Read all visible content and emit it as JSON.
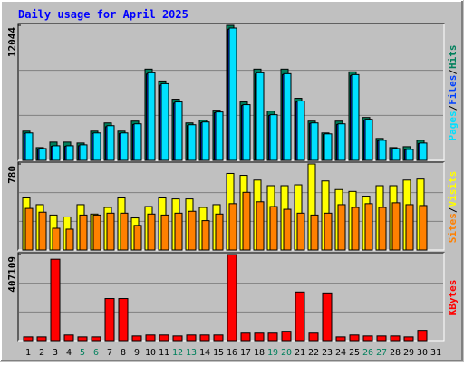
{
  "chart_data": [
    {
      "type": "bar",
      "title": "Daily usage for April 2025",
      "separator": "/",
      "ylim": [
        0,
        12044
      ],
      "yticks": [
        12044
      ],
      "series": [
        {
          "name": "Pages",
          "color": "#00e0ff",
          "values": [
            2442,
            1058,
            1302,
            1302,
            1384,
            2442,
            3093,
            2442,
            3256,
            7814,
            6838,
            5210,
            3174,
            3419,
            4314,
            11802,
            4965,
            7814,
            4070,
            7732,
            5291,
            3337,
            2360,
            3256,
            7651,
            3663,
            1791,
            1058,
            977,
            1546,
            null
          ]
        },
        {
          "name": "Files",
          "color": "#0040ff",
          "values": [
            2400,
            1000,
            1250,
            1250,
            1300,
            2400,
            3000,
            2400,
            3200,
            7700,
            6700,
            5100,
            3100,
            3350,
            4250,
            11700,
            4900,
            7700,
            4000,
            7650,
            5200,
            3300,
            2300,
            3200,
            7550,
            3600,
            1750,
            1000,
            950,
            1500,
            null
          ]
        },
        {
          "name": "Hits",
          "color": "#00805c",
          "values": [
            2604,
            1139,
            1628,
            1628,
            1546,
            2604,
            3336,
            2604,
            3499,
            8138,
            7080,
            5452,
            3336,
            3581,
            4476,
            12044,
            5208,
            8138,
            4394,
            8138,
            5534,
            3499,
            2441,
            3499,
            7894,
            3825,
            1953,
            1139,
            1221,
            1790,
            null
          ]
        }
      ]
    },
    {
      "type": "bar",
      "ylim": [
        0,
        780
      ],
      "yticks": [
        780
      ],
      "series": [
        {
          "name": "Sites",
          "color": "#ff8000",
          "values": [
            377,
            343,
            197,
            189,
            317,
            317,
            334,
            334,
            223,
            326,
            317,
            334,
            351,
            266,
            326,
            420,
            523,
            437,
            394,
            369,
            334,
            317,
            334,
            411,
            386,
            420,
            386,
            428,
            411,
            403,
            null
          ]
        },
        {
          "name": "Visits",
          "color": "#ffff00",
          "values": [
            472,
            411,
            317,
            300,
            411,
            326,
            386,
            472,
            291,
            394,
            472,
            463,
            463,
            386,
            411,
            694,
            677,
            634,
            583,
            583,
            591,
            780,
            626,
            548,
            531,
            488,
            583,
            583,
            634,
            643,
            null
          ]
        }
      ]
    },
    {
      "type": "bar",
      "ylim": [
        0,
        407109
      ],
      "yticks": [
        407109
      ],
      "categories": [
        "1",
        "2",
        "3",
        "4",
        "5",
        "6",
        "7",
        "8",
        "9",
        "10",
        "11",
        "12",
        "13",
        "14",
        "15",
        "16",
        "17",
        "18",
        "19",
        "20",
        "21",
        "22",
        "23",
        "24",
        "25",
        "26",
        "27",
        "28",
        "29",
        "30",
        "31"
      ],
      "weekend": [
        5,
        6,
        12,
        13,
        19,
        20,
        26,
        27
      ],
      "weekend_color": "#00805c",
      "series": [
        {
          "name": "KBytes",
          "color": "#ff0000",
          "values": [
            17700,
            17700,
            384975,
            26550,
            17700,
            17700,
            199125,
            199125,
            22125,
            26550,
            26550,
            22125,
            26550,
            26550,
            26550,
            407109,
            35400,
            35400,
            35400,
            44250,
            230100,
            35400,
            225675,
            17700,
            26550,
            22125,
            22125,
            22125,
            17700,
            48675,
            null
          ]
        }
      ]
    }
  ]
}
